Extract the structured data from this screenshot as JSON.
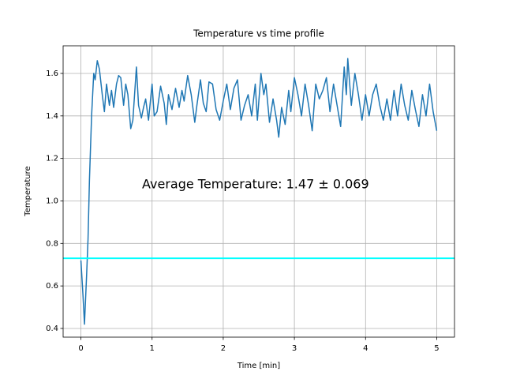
{
  "chart_data": {
    "type": "line",
    "title": "Temperature vs time profile",
    "xlabel": "Time [min]",
    "ylabel": "Temperature",
    "annotation": "Average Temperature: 1.47 ± 0.069",
    "xlim": [
      -0.25,
      5.25
    ],
    "ylim": [
      0.359,
      1.73
    ],
    "xticks": [
      0,
      1,
      2,
      3,
      4,
      5
    ],
    "yticks": [
      0.4,
      0.6,
      0.8,
      {
        "value": 1,
        "label": "1.0"
      },
      1.2,
      1.4,
      1.6
    ],
    "grid": true,
    "hline": {
      "value": 0.73,
      "color": "#00ffff"
    },
    "x": [
      0,
      0.03,
      0.05,
      0.08,
      0.1,
      0.12,
      0.15,
      0.18,
      0.2,
      0.23,
      0.26,
      0.3,
      0.33,
      0.36,
      0.4,
      0.43,
      0.46,
      0.5,
      0.53,
      0.56,
      0.6,
      0.63,
      0.66,
      0.7,
      0.73,
      0.78,
      0.81,
      0.85,
      0.88,
      0.91,
      0.95,
      1.0,
      1.03,
      1.07,
      1.12,
      1.17,
      1.2,
      1.23,
      1.28,
      1.33,
      1.38,
      1.42,
      1.45,
      1.5,
      1.55,
      1.6,
      1.63,
      1.68,
      1.72,
      1.76,
      1.8,
      1.85,
      1.9,
      1.95,
      2.0,
      2.05,
      2.1,
      2.15,
      2.2,
      2.25,
      2.3,
      2.35,
      2.4,
      2.45,
      2.48,
      2.53,
      2.57,
      2.6,
      2.65,
      2.7,
      2.75,
      2.78,
      2.82,
      2.87,
      2.92,
      2.95,
      3.0,
      3.05,
      3.1,
      3.15,
      3.2,
      3.25,
      3.3,
      3.35,
      3.4,
      3.45,
      3.5,
      3.55,
      3.6,
      3.65,
      3.7,
      3.73,
      3.75,
      3.8,
      3.85,
      3.9,
      3.95,
      4.0,
      4.05,
      4.1,
      4.15,
      4.2,
      4.25,
      4.3,
      4.35,
      4.4,
      4.45,
      4.5,
      4.55,
      4.6,
      4.65,
      4.7,
      4.75,
      4.8,
      4.85,
      4.9,
      4.95,
      5.0
    ],
    "series": [
      {
        "color": "#1f77b4",
        "values": [
          0.72,
          0.55,
          0.42,
          0.65,
          0.82,
          1.1,
          1.4,
          1.6,
          1.57,
          1.66,
          1.62,
          1.5,
          1.42,
          1.55,
          1.45,
          1.52,
          1.44,
          1.55,
          1.59,
          1.58,
          1.45,
          1.55,
          1.5,
          1.34,
          1.38,
          1.63,
          1.45,
          1.39,
          1.44,
          1.48,
          1.38,
          1.55,
          1.4,
          1.42,
          1.54,
          1.46,
          1.36,
          1.5,
          1.43,
          1.53,
          1.44,
          1.52,
          1.47,
          1.59,
          1.5,
          1.37,
          1.45,
          1.57,
          1.46,
          1.42,
          1.56,
          1.55,
          1.43,
          1.38,
          1.47,
          1.55,
          1.43,
          1.53,
          1.57,
          1.38,
          1.45,
          1.5,
          1.4,
          1.55,
          1.38,
          1.6,
          1.5,
          1.55,
          1.37,
          1.48,
          1.38,
          1.3,
          1.44,
          1.36,
          1.52,
          1.42,
          1.58,
          1.5,
          1.4,
          1.55,
          1.45,
          1.33,
          1.55,
          1.48,
          1.52,
          1.58,
          1.42,
          1.55,
          1.45,
          1.35,
          1.63,
          1.5,
          1.67,
          1.45,
          1.6,
          1.5,
          1.38,
          1.5,
          1.4,
          1.5,
          1.55,
          1.45,
          1.38,
          1.48,
          1.38,
          1.52,
          1.4,
          1.55,
          1.45,
          1.38,
          1.52,
          1.43,
          1.35,
          1.5,
          1.4,
          1.55,
          1.42,
          1.33
        ]
      }
    ]
  }
}
